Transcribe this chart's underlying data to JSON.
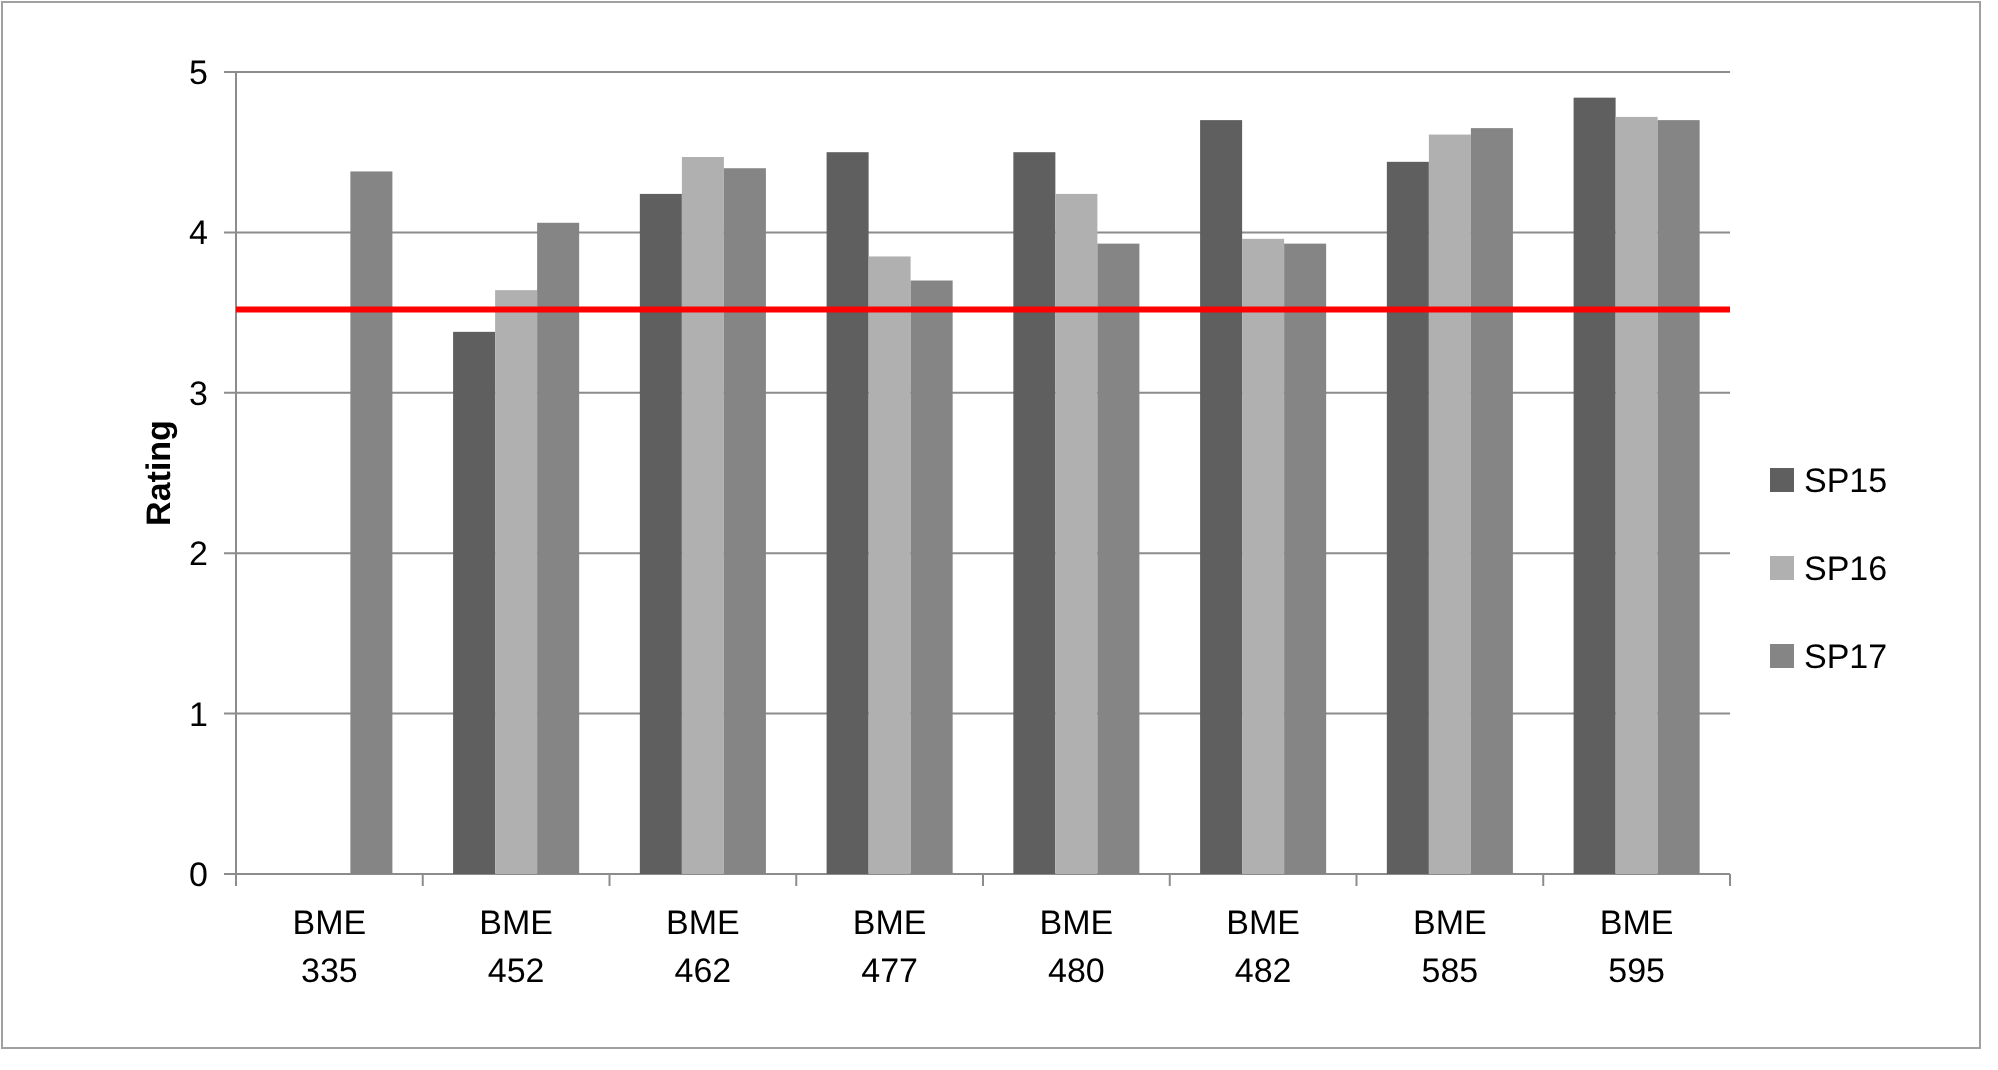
{
  "chart_data": {
    "type": "bar",
    "ylabel": "Rating",
    "categories": [
      "BME 335",
      "BME 452",
      "BME 462",
      "BME 477",
      "BME 480",
      "BME 482",
      "BME 585",
      "BME 595"
    ],
    "series": [
      {
        "name": "SP15",
        "color": "#5f5f5f",
        "values": [
          null,
          3.38,
          4.24,
          4.5,
          4.5,
          4.7,
          4.44,
          4.84
        ]
      },
      {
        "name": "SP16",
        "color": "#b0b0b0",
        "values": [
          null,
          3.64,
          4.47,
          3.85,
          4.24,
          3.96,
          4.61,
          4.72
        ]
      },
      {
        "name": "SP17",
        "color": "#858585",
        "values": [
          4.38,
          4.06,
          4.4,
          3.7,
          3.93,
          3.93,
          4.65,
          4.7
        ]
      }
    ],
    "ylim": [
      0,
      5
    ],
    "yticks": [
      0,
      1,
      2,
      3,
      4,
      5
    ],
    "grid": "y",
    "legend": "right",
    "ref_lines": [
      {
        "axis": "y",
        "value": 3.52,
        "color": "#ff0000"
      }
    ]
  }
}
